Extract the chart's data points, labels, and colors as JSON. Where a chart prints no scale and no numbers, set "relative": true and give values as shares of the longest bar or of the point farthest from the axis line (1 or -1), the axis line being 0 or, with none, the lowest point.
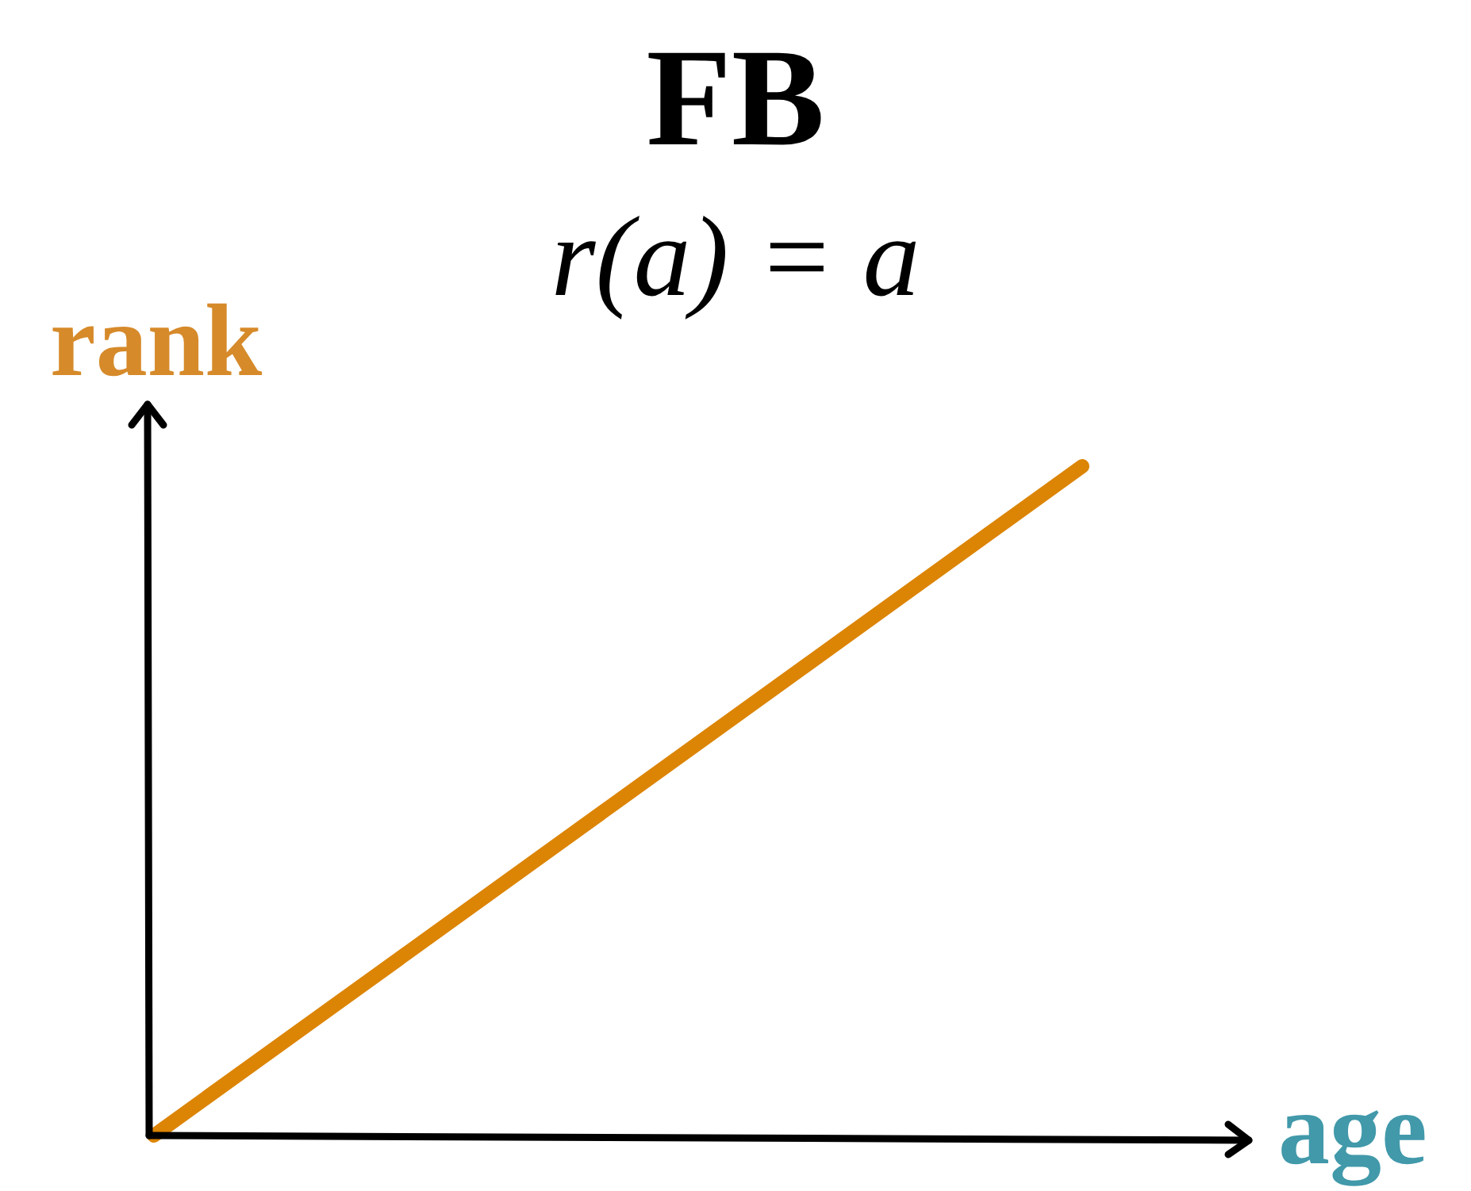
{
  "chart_data": {
    "type": "line",
    "title": "FB",
    "subtitle": "r(a) = a",
    "xlabel": "age",
    "ylabel": "rank",
    "categories": [
      null,
      null
    ],
    "relative": true,
    "series": [
      {
        "color": "#dc8404",
        "values": [
          0,
          1
        ]
      }
    ]
  }
}
